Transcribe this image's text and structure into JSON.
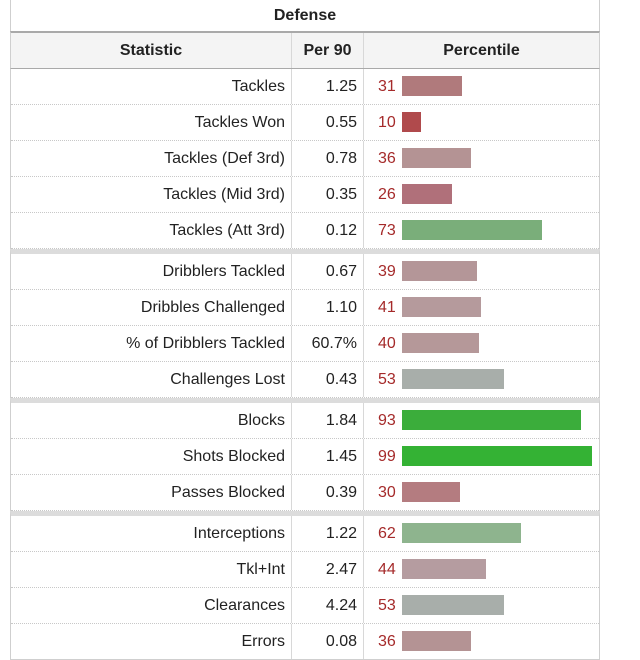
{
  "table": {
    "title": "Defense",
    "headers": [
      "Statistic",
      "Per 90",
      "Percentile"
    ]
  },
  "chart_data": {
    "type": "table",
    "title": "Defense",
    "columns": [
      "Statistic",
      "Per 90",
      "Percentile"
    ],
    "groups": [
      [
        {
          "stat": "Tackles",
          "per90": "1.25",
          "percentile": 31,
          "color": "#b07a7c"
        },
        {
          "stat": "Tackles Won",
          "per90": "0.55",
          "percentile": 10,
          "color": "#b04a4c"
        },
        {
          "stat": "Tackles (Def 3rd)",
          "per90": "0.78",
          "percentile": 36,
          "color": "#b49394"
        },
        {
          "stat": "Tackles (Mid 3rd)",
          "per90": "0.35",
          "percentile": 26,
          "color": "#b0707a"
        },
        {
          "stat": "Tackles (Att 3rd)",
          "per90": "0.12",
          "percentile": 73,
          "color": "#7aae7a"
        }
      ],
      [
        {
          "stat": "Dribblers Tackled",
          "per90": "0.67",
          "percentile": 39,
          "color": "#b49698"
        },
        {
          "stat": "Dribbles Challenged",
          "per90": "1.10",
          "percentile": 41,
          "color": "#b59a9c"
        },
        {
          "stat": "% of Dribblers Tackled",
          "per90": "60.7%",
          "percentile": 40,
          "color": "#b59899"
        },
        {
          "stat": "Challenges Lost",
          "per90": "0.43",
          "percentile": 53,
          "color": "#a8aeaa"
        }
      ],
      [
        {
          "stat": "Blocks",
          "per90": "1.84",
          "percentile": 93,
          "color": "#3bad3b"
        },
        {
          "stat": "Shots Blocked",
          "per90": "1.45",
          "percentile": 99,
          "color": "#34b234"
        },
        {
          "stat": "Passes Blocked",
          "per90": "0.39",
          "percentile": 30,
          "color": "#b47c80"
        }
      ],
      [
        {
          "stat": "Interceptions",
          "per90": "1.22",
          "percentile": 62,
          "color": "#8eb48e"
        },
        {
          "stat": "Tkl+Int",
          "per90": "2.47",
          "percentile": 44,
          "color": "#b59ca0"
        },
        {
          "stat": "Clearances",
          "per90": "4.24",
          "percentile": 53,
          "color": "#a8aeaa"
        },
        {
          "stat": "Errors",
          "per90": "0.08",
          "percentile": 36,
          "color": "#b49394"
        }
      ]
    ],
    "percentile_range": [
      0,
      100
    ]
  }
}
